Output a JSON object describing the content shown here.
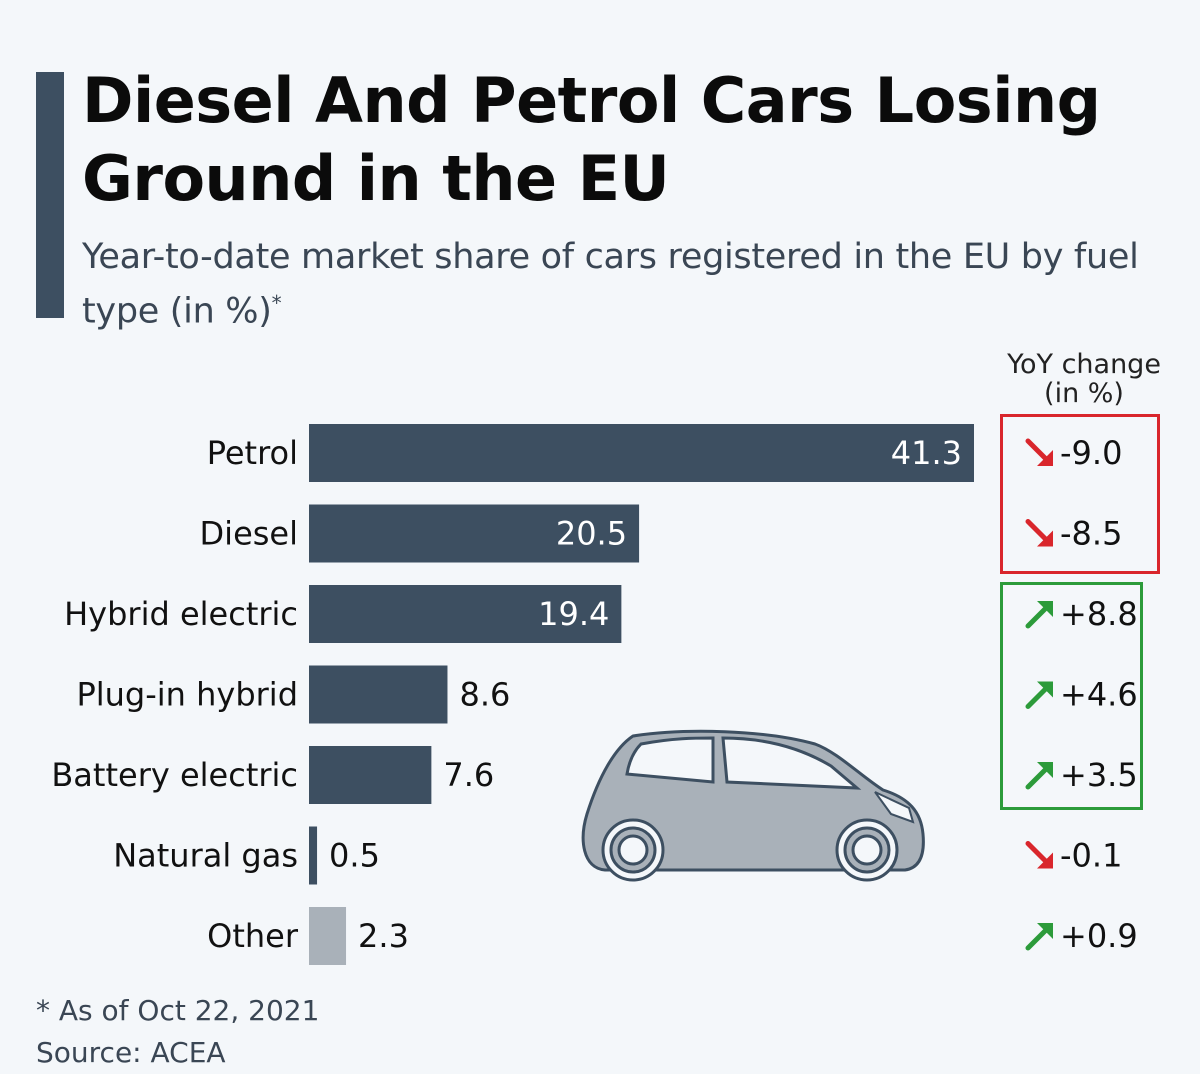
{
  "title": "Diesel And Petrol Cars Losing Ground in the EU",
  "subtitle_main": "Year-to-date market share of cars registered in the EU by fuel type (in %)",
  "subtitle_mark": "*",
  "yoy_header": {
    "line1": "YoY change",
    "line2": "(in %)"
  },
  "colors": {
    "bar": "#3d4f61",
    "bar_other": "#a9b1b9",
    "up": "#2c9b3a",
    "down": "#d9262c"
  },
  "chart_data": {
    "type": "bar",
    "orientation": "horizontal",
    "categories": [
      "Petrol",
      "Diesel",
      "Hybrid electric",
      "Plug-in hybrid",
      "Battery electric",
      "Natural gas",
      "Other"
    ],
    "values": [
      41.3,
      20.5,
      19.4,
      8.6,
      7.6,
      0.5,
      2.3
    ],
    "value_labels": [
      "41.3",
      "20.5",
      "19.4",
      "8.6",
      "7.6",
      "0.5",
      "2.3"
    ],
    "yoy_change": [
      -9.0,
      -8.5,
      8.8,
      4.6,
      3.5,
      -0.1,
      0.9
    ],
    "yoy_labels": [
      "-9.0",
      "-8.5",
      "+8.8",
      "+4.6",
      "+3.5",
      "-0.1",
      "+0.9"
    ],
    "title": "Diesel And Petrol Cars Losing Ground in the EU",
    "xlabel": "",
    "ylabel": "",
    "grid": false
  },
  "footnote": "* As of Oct 22, 2021",
  "source": "Source: ACEA"
}
